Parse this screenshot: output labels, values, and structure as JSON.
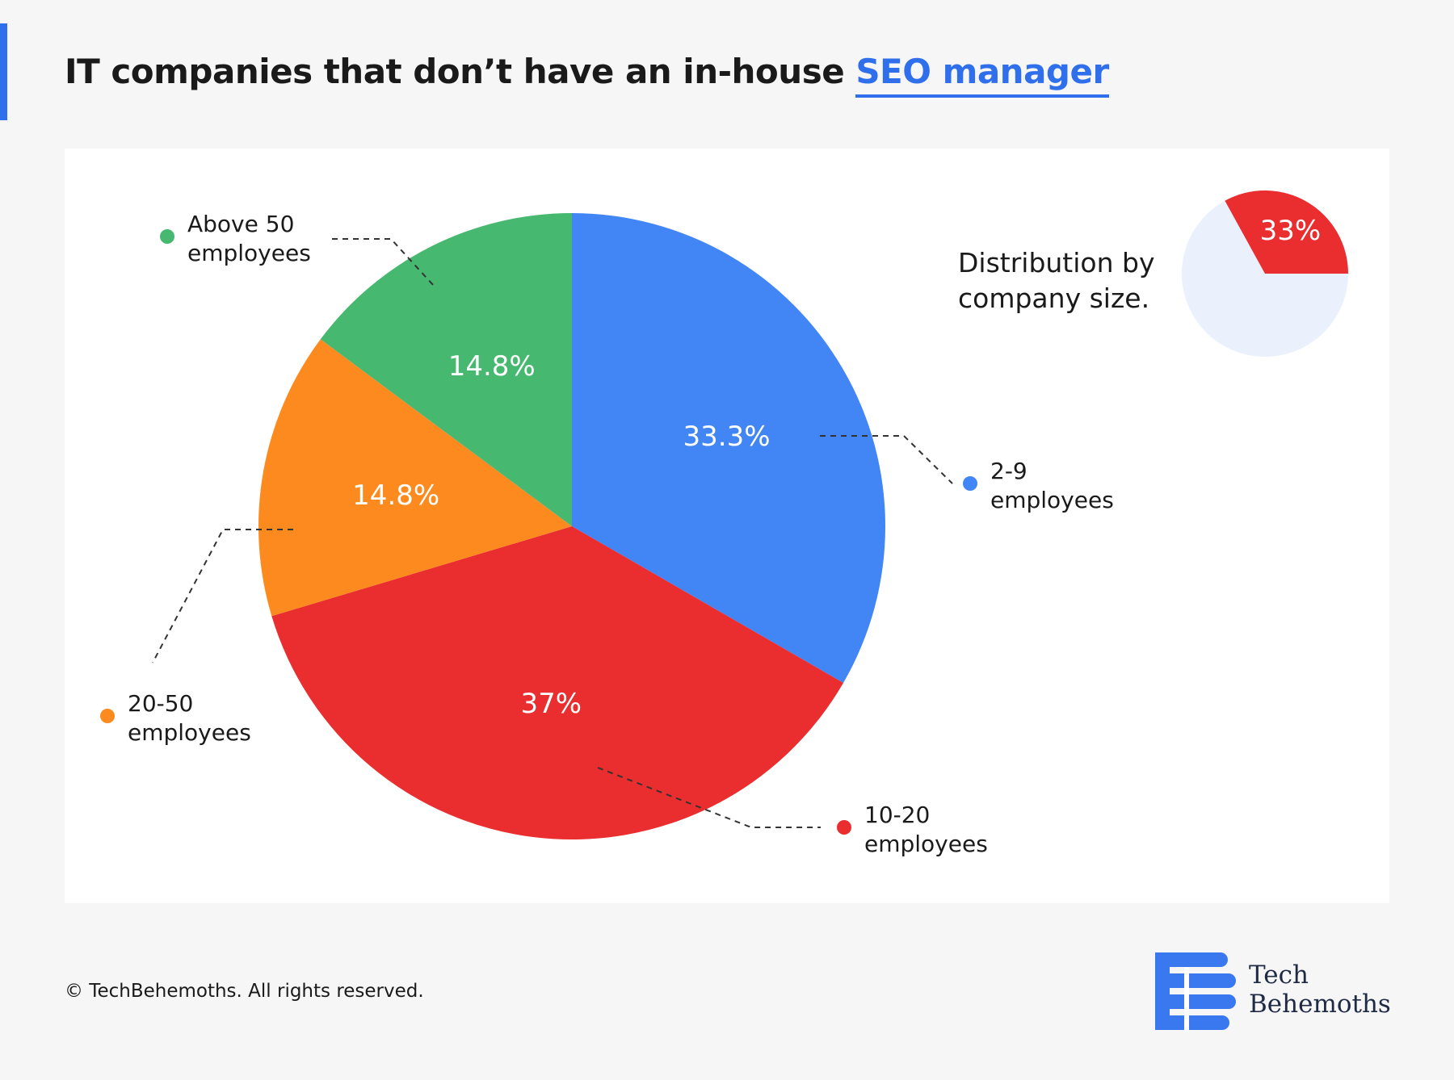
{
  "title": {
    "text": "IT companies that don’t have an in-house",
    "highlight": "SEO manager"
  },
  "chart_data": [
    {
      "type": "pie",
      "categories": [
        "2-9 employees",
        "10-20 employees",
        "20-50 employees",
        "Above 50 employees"
      ],
      "values": [
        33.3,
        37,
        14.8,
        14.8
      ],
      "value_labels": [
        "33.3%",
        "37%",
        "14.8%",
        "14.8%"
      ],
      "colors": [
        "#4285f4",
        "#ea2d2e",
        "#fd8a1e",
        "#46b870"
      ]
    },
    {
      "type": "pie",
      "subtitle": "Distribution by company size.",
      "values": [
        33
      ],
      "value_labels": [
        "33%"
      ],
      "colors": [
        "#ea2d2e"
      ]
    }
  ],
  "footer": "© TechBehemoths. All rights reserved.",
  "logo": [
    "Tech",
    "Behemoths"
  ]
}
